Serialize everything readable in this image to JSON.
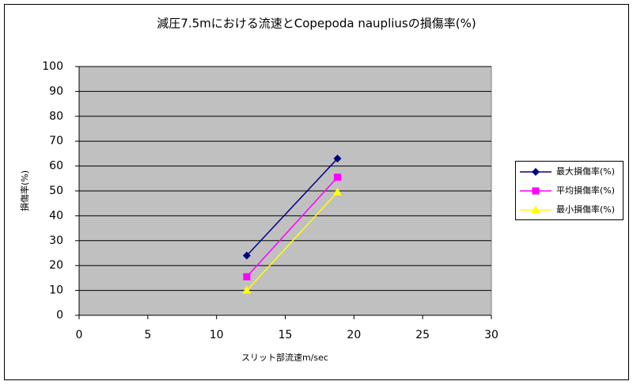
{
  "chart_data": {
    "type": "scatter-line",
    "title": "減圧7.5mにおける流速とCopepoda naupliusの損傷率(%)",
    "x_label": "スリット部流速m/sec",
    "y_label": "損傷率(%)",
    "x": [
      12.2,
      18.8
    ],
    "series": [
      {
        "name": "最大損傷率(%)",
        "color": "#000080",
        "marker": "diamond",
        "values": [
          24,
          63
        ]
      },
      {
        "name": "平均損傷率(%)",
        "color": "#ff00ff",
        "marker": "square",
        "values": [
          15.5,
          55.5
        ]
      },
      {
        "name": "最小損傷率(%)",
        "color": "#ffff00",
        "marker": "triangle",
        "values": [
          10,
          49.5
        ]
      }
    ],
    "xlim": [
      0,
      30
    ],
    "xticks": [
      0,
      5,
      10,
      15,
      20,
      25,
      30
    ],
    "ylim": [
      0,
      100
    ],
    "yticks": [
      0,
      10,
      20,
      30,
      40,
      50,
      60,
      70,
      80,
      90,
      100
    ],
    "grid": true,
    "legend": "right"
  }
}
